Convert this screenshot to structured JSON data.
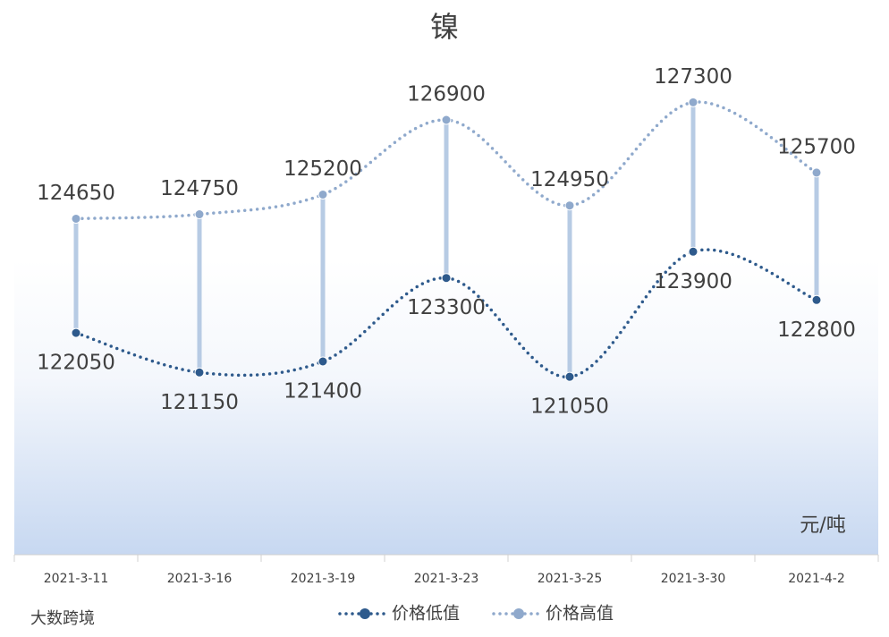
{
  "chart_data": {
    "type": "line",
    "title": "镍",
    "categories": [
      "2021-3-11",
      "2021-3-16",
      "2021-3-19",
      "2021-3-23",
      "2021-3-25",
      "2021-3-30",
      "2021-4-2"
    ],
    "series": [
      {
        "name": "价格低值",
        "color": "#2e5a8c",
        "values": [
          122050,
          121150,
          121400,
          123300,
          121050,
          123900,
          122800
        ]
      },
      {
        "name": "价格高值",
        "color": "#8fa9cc",
        "values": [
          124650,
          124750,
          125200,
          126900,
          124950,
          127300,
          125700
        ]
      }
    ],
    "ylim": [
      117000,
      128000
    ],
    "unit": "元/吨",
    "watermark": "大数跨境",
    "hilo_lines": true,
    "grid": false
  }
}
